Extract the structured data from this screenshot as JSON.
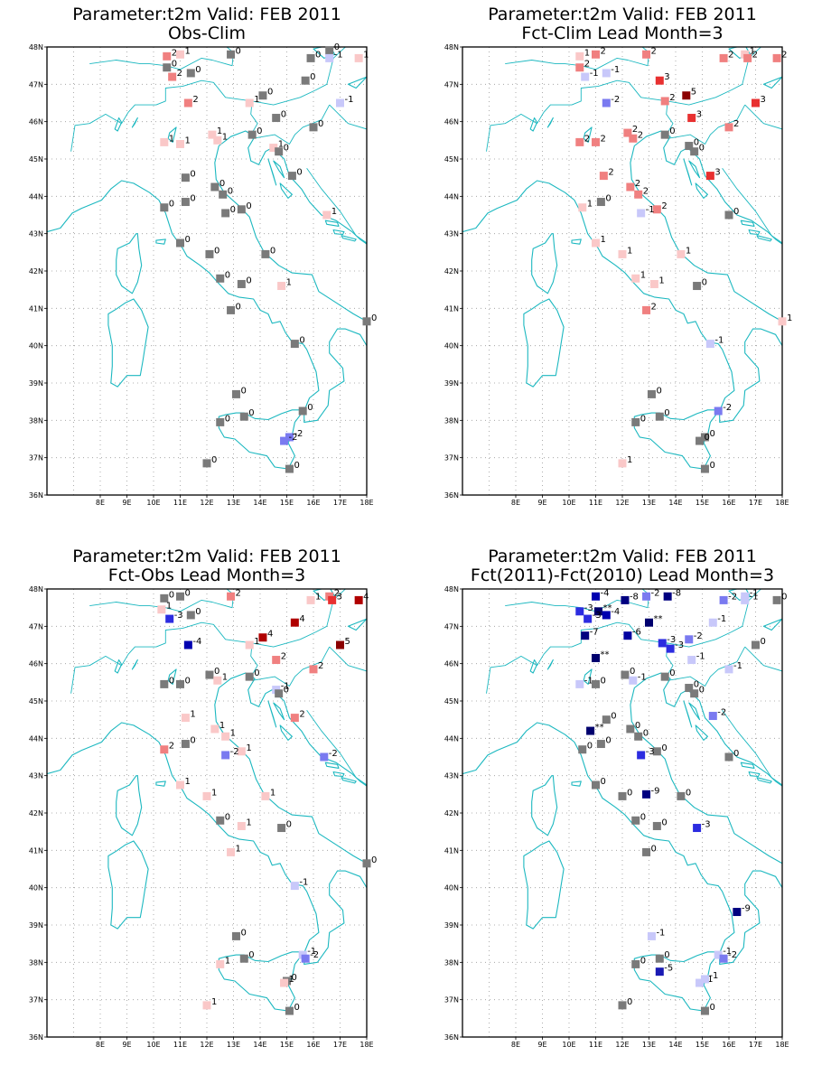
{
  "page": {
    "background": "#ffffff"
  },
  "style": {
    "frame_color": "#000000",
    "coast_color": "#1cb8c0",
    "grid_color": "#999999",
    "levels": {
      "-9": "#000080",
      "-8": "#000080",
      "-7": "#000080",
      "-6": "#0000a0",
      "-5": "#1a1ab4",
      "-4": "#0000b0",
      "-3": "#2c2ce0",
      "-2": "#7a7af0",
      "-1": "#c8c8fa",
      "0": "#7a7a7a",
      "1": "#fac8c8",
      "2": "#f08080",
      "3": "#e83030",
      "4": "#b00000",
      "5": "#8b0000",
      "**": "#00006e"
    }
  },
  "axes": {
    "x_ticks": [
      "8E",
      "9E",
      "10E",
      "11E",
      "12E",
      "13E",
      "14E",
      "15E",
      "16E",
      "17E",
      "18E"
    ],
    "y_ticks": [
      "36N",
      "37N",
      "38N",
      "39N",
      "40N",
      "41N",
      "42N",
      "43N",
      "44N",
      "45N",
      "46N",
      "47N",
      "48N"
    ]
  },
  "panels": [
    {
      "title1": "Parameter:t2m Valid: FEB 2011",
      "title2": "Obs-Clim",
      "stations": [
        {
          "lon": 10.5,
          "lat": 47.75,
          "v": "2"
        },
        {
          "lon": 11.0,
          "lat": 47.8,
          "v": "1"
        },
        {
          "lon": 12.9,
          "lat": 47.8,
          "v": "0"
        },
        {
          "lon": 16.6,
          "lat": 47.9,
          "v": "0"
        },
        {
          "lon": 16.6,
          "lat": 47.7,
          "v": "-1"
        },
        {
          "lon": 17.7,
          "lat": 47.7,
          "v": "1"
        },
        {
          "lon": 10.5,
          "lat": 47.45,
          "v": "0"
        },
        {
          "lon": 11.4,
          "lat": 47.3,
          "v": "0"
        },
        {
          "lon": 10.7,
          "lat": 47.2,
          "v": "2"
        },
        {
          "lon": 15.9,
          "lat": 47.7,
          "v": "0"
        },
        {
          "lon": 15.7,
          "lat": 47.1,
          "v": "0"
        },
        {
          "lon": 14.1,
          "lat": 46.7,
          "v": "0"
        },
        {
          "lon": 13.6,
          "lat": 46.5,
          "v": "1"
        },
        {
          "lon": 11.3,
          "lat": 46.5,
          "v": "2"
        },
        {
          "lon": 17.0,
          "lat": 46.5,
          "v": "-1"
        },
        {
          "lon": 14.6,
          "lat": 46.1,
          "v": "0"
        },
        {
          "lon": 16.0,
          "lat": 45.85,
          "v": "0"
        },
        {
          "lon": 12.2,
          "lat": 45.65,
          "v": "1"
        },
        {
          "lon": 12.4,
          "lat": 45.5,
          "v": "1"
        },
        {
          "lon": 13.7,
          "lat": 45.65,
          "v": "0"
        },
        {
          "lon": 10.4,
          "lat": 45.45,
          "v": "1"
        },
        {
          "lon": 11.0,
          "lat": 45.4,
          "v": "1"
        },
        {
          "lon": 14.5,
          "lat": 45.3,
          "v": "1"
        },
        {
          "lon": 14.7,
          "lat": 45.2,
          "v": "0"
        },
        {
          "lon": 11.2,
          "lat": 44.5,
          "v": "0"
        },
        {
          "lon": 15.2,
          "lat": 44.55,
          "v": "0"
        },
        {
          "lon": 12.3,
          "lat": 44.25,
          "v": "0"
        },
        {
          "lon": 12.6,
          "lat": 44.05,
          "v": "0"
        },
        {
          "lon": 11.2,
          "lat": 43.85,
          "v": "0"
        },
        {
          "lon": 10.4,
          "lat": 43.7,
          "v": "0"
        },
        {
          "lon": 13.3,
          "lat": 43.65,
          "v": "0"
        },
        {
          "lon": 12.7,
          "lat": 43.55,
          "v": "0"
        },
        {
          "lon": 16.5,
          "lat": 43.5,
          "v": "1"
        },
        {
          "lon": 11.0,
          "lat": 42.75,
          "v": "0"
        },
        {
          "lon": 12.1,
          "lat": 42.45,
          "v": "0"
        },
        {
          "lon": 14.2,
          "lat": 42.45,
          "v": "0"
        },
        {
          "lon": 12.5,
          "lat": 41.8,
          "v": "0"
        },
        {
          "lon": 13.3,
          "lat": 41.65,
          "v": "0"
        },
        {
          "lon": 14.8,
          "lat": 41.6,
          "v": "1"
        },
        {
          "lon": 12.9,
          "lat": 40.95,
          "v": "0"
        },
        {
          "lon": 18.0,
          "lat": 40.65,
          "v": "0"
        },
        {
          "lon": 15.3,
          "lat": 40.05,
          "v": "0"
        },
        {
          "lon": 13.1,
          "lat": 38.7,
          "v": "0"
        },
        {
          "lon": 15.6,
          "lat": 38.25,
          "v": "0"
        },
        {
          "lon": 13.4,
          "lat": 38.1,
          "v": "0"
        },
        {
          "lon": 12.5,
          "lat": 37.95,
          "v": "0"
        },
        {
          "lon": 15.1,
          "lat": 37.55,
          "v": "-2"
        },
        {
          "lon": 14.9,
          "lat": 37.45,
          "v": "-2"
        },
        {
          "lon": 12.0,
          "lat": 36.85,
          "v": "0"
        },
        {
          "lon": 15.1,
          "lat": 36.7,
          "v": "0"
        }
      ]
    },
    {
      "title1": "Parameter:t2m Valid: FEB 2011",
      "title2": "Fct-Clim Lead Month=3",
      "stations": [
        {
          "lon": 10.4,
          "lat": 47.75,
          "v": "1"
        },
        {
          "lon": 11.0,
          "lat": 47.8,
          "v": "2"
        },
        {
          "lon": 12.9,
          "lat": 47.8,
          "v": "2"
        },
        {
          "lon": 15.8,
          "lat": 47.7,
          "v": "2"
        },
        {
          "lon": 16.6,
          "lat": 47.8,
          "v": "1"
        },
        {
          "lon": 16.7,
          "lat": 47.7,
          "v": "2"
        },
        {
          "lon": 17.8,
          "lat": 47.7,
          "v": "2"
        },
        {
          "lon": 10.4,
          "lat": 47.45,
          "v": "2"
        },
        {
          "lon": 11.4,
          "lat": 47.3,
          "v": "-1"
        },
        {
          "lon": 10.6,
          "lat": 47.2,
          "v": "-1"
        },
        {
          "lon": 13.4,
          "lat": 47.1,
          "v": "3"
        },
        {
          "lon": 14.4,
          "lat": 46.7,
          "v": "5"
        },
        {
          "lon": 13.6,
          "lat": 46.55,
          "v": "2"
        },
        {
          "lon": 11.4,
          "lat": 46.5,
          "v": "-2"
        },
        {
          "lon": 17.0,
          "lat": 46.5,
          "v": "3"
        },
        {
          "lon": 14.6,
          "lat": 46.1,
          "v": "3"
        },
        {
          "lon": 16.0,
          "lat": 45.85,
          "v": "2"
        },
        {
          "lon": 12.2,
          "lat": 45.7,
          "v": "2"
        },
        {
          "lon": 12.4,
          "lat": 45.55,
          "v": "2"
        },
        {
          "lon": 13.6,
          "lat": 45.65,
          "v": "0"
        },
        {
          "lon": 10.4,
          "lat": 45.45,
          "v": "2"
        },
        {
          "lon": 11.0,
          "lat": 45.45,
          "v": "2"
        },
        {
          "lon": 14.5,
          "lat": 45.35,
          "v": "0"
        },
        {
          "lon": 14.7,
          "lat": 45.2,
          "v": "0"
        },
        {
          "lon": 11.3,
          "lat": 44.55,
          "v": "2"
        },
        {
          "lon": 15.3,
          "lat": 44.55,
          "v": "3"
        },
        {
          "lon": 12.3,
          "lat": 44.25,
          "v": "2"
        },
        {
          "lon": 12.6,
          "lat": 44.05,
          "v": "2"
        },
        {
          "lon": 11.2,
          "lat": 43.85,
          "v": "0"
        },
        {
          "lon": 10.5,
          "lat": 43.7,
          "v": "1"
        },
        {
          "lon": 13.3,
          "lat": 43.65,
          "v": "2"
        },
        {
          "lon": 12.7,
          "lat": 43.55,
          "v": "-1"
        },
        {
          "lon": 16.0,
          "lat": 43.5,
          "v": "0"
        },
        {
          "lon": 11.0,
          "lat": 42.75,
          "v": "1"
        },
        {
          "lon": 12.0,
          "lat": 42.45,
          "v": "1"
        },
        {
          "lon": 14.2,
          "lat": 42.45,
          "v": "1"
        },
        {
          "lon": 12.5,
          "lat": 41.8,
          "v": "1"
        },
        {
          "lon": 13.2,
          "lat": 41.65,
          "v": "1"
        },
        {
          "lon": 14.8,
          "lat": 41.6,
          "v": "0"
        },
        {
          "lon": 12.9,
          "lat": 40.95,
          "v": "2"
        },
        {
          "lon": 18.0,
          "lat": 40.65,
          "v": "1"
        },
        {
          "lon": 15.3,
          "lat": 40.05,
          "v": "-1"
        },
        {
          "lon": 13.1,
          "lat": 38.7,
          "v": "0"
        },
        {
          "lon": 15.6,
          "lat": 38.25,
          "v": "-2"
        },
        {
          "lon": 13.4,
          "lat": 38.1,
          "v": "0"
        },
        {
          "lon": 12.5,
          "lat": 37.95,
          "v": "0"
        },
        {
          "lon": 15.1,
          "lat": 37.55,
          "v": "0"
        },
        {
          "lon": 14.9,
          "lat": 37.45,
          "v": "0"
        },
        {
          "lon": 12.0,
          "lat": 36.85,
          "v": "1"
        },
        {
          "lon": 15.1,
          "lat": 36.7,
          "v": "0"
        }
      ]
    },
    {
      "title1": "Parameter:t2m Valid: FEB 2011",
      "title2": "Fct-Obs Lead Month=3",
      "stations": [
        {
          "lon": 10.4,
          "lat": 47.75,
          "v": "0"
        },
        {
          "lon": 11.0,
          "lat": 47.8,
          "v": "0"
        },
        {
          "lon": 12.9,
          "lat": 47.8,
          "v": "2"
        },
        {
          "lon": 15.9,
          "lat": 47.7,
          "v": "1"
        },
        {
          "lon": 16.6,
          "lat": 47.8,
          "v": "2"
        },
        {
          "lon": 16.7,
          "lat": 47.7,
          "v": "3"
        },
        {
          "lon": 17.7,
          "lat": 47.7,
          "v": "4"
        },
        {
          "lon": 10.3,
          "lat": 47.45,
          "v": "1"
        },
        {
          "lon": 11.4,
          "lat": 47.3,
          "v": "0"
        },
        {
          "lon": 10.6,
          "lat": 47.2,
          "v": "-3"
        },
        {
          "lon": 15.3,
          "lat": 47.1,
          "v": "4"
        },
        {
          "lon": 14.1,
          "lat": 46.7,
          "v": "4"
        },
        {
          "lon": 13.6,
          "lat": 46.5,
          "v": "1"
        },
        {
          "lon": 11.3,
          "lat": 46.5,
          "v": "-4"
        },
        {
          "lon": 17.0,
          "lat": 46.5,
          "v": "5"
        },
        {
          "lon": 14.6,
          "lat": 46.1,
          "v": "2"
        },
        {
          "lon": 16.0,
          "lat": 45.85,
          "v": "2"
        },
        {
          "lon": 12.1,
          "lat": 45.7,
          "v": "0"
        },
        {
          "lon": 12.4,
          "lat": 45.55,
          "v": "1"
        },
        {
          "lon": 13.6,
          "lat": 45.65,
          "v": "0"
        },
        {
          "lon": 10.4,
          "lat": 45.45,
          "v": "0"
        },
        {
          "lon": 11.0,
          "lat": 45.45,
          "v": "0"
        },
        {
          "lon": 14.6,
          "lat": 45.3,
          "v": "-1"
        },
        {
          "lon": 14.7,
          "lat": 45.2,
          "v": "0"
        },
        {
          "lon": 11.2,
          "lat": 44.55,
          "v": "1"
        },
        {
          "lon": 15.3,
          "lat": 44.55,
          "v": "2"
        },
        {
          "lon": 12.3,
          "lat": 44.25,
          "v": "1"
        },
        {
          "lon": 12.7,
          "lat": 44.05,
          "v": "1"
        },
        {
          "lon": 11.2,
          "lat": 43.85,
          "v": "0"
        },
        {
          "lon": 10.4,
          "lat": 43.7,
          "v": "2"
        },
        {
          "lon": 13.3,
          "lat": 43.65,
          "v": "1"
        },
        {
          "lon": 12.7,
          "lat": 43.55,
          "v": "-2"
        },
        {
          "lon": 16.4,
          "lat": 43.5,
          "v": "-2"
        },
        {
          "lon": 11.0,
          "lat": 42.75,
          "v": "1"
        },
        {
          "lon": 12.0,
          "lat": 42.45,
          "v": "1"
        },
        {
          "lon": 14.2,
          "lat": 42.45,
          "v": "1"
        },
        {
          "lon": 12.5,
          "lat": 41.8,
          "v": "0"
        },
        {
          "lon": 13.3,
          "lat": 41.65,
          "v": "1"
        },
        {
          "lon": 14.8,
          "lat": 41.6,
          "v": "0"
        },
        {
          "lon": 12.9,
          "lat": 40.95,
          "v": "1"
        },
        {
          "lon": 18.0,
          "lat": 40.65,
          "v": "0"
        },
        {
          "lon": 15.3,
          "lat": 40.05,
          "v": "-1"
        },
        {
          "lon": 13.1,
          "lat": 38.7,
          "v": "0"
        },
        {
          "lon": 15.6,
          "lat": 38.2,
          "v": "-1"
        },
        {
          "lon": 15.7,
          "lat": 38.1,
          "v": "-2"
        },
        {
          "lon": 13.4,
          "lat": 38.1,
          "v": "0"
        },
        {
          "lon": 12.5,
          "lat": 37.95,
          "v": "1"
        },
        {
          "lon": 15.0,
          "lat": 37.5,
          "v": "0"
        },
        {
          "lon": 14.9,
          "lat": 37.45,
          "v": "1"
        },
        {
          "lon": 12.0,
          "lat": 36.85,
          "v": "1"
        },
        {
          "lon": 15.1,
          "lat": 36.7,
          "v": "0"
        }
      ]
    },
    {
      "title1": "Parameter:t2m Valid: FEB 2011",
      "title2": "Fct(2011)-Fct(2010) Lead Month=3",
      "stations": [
        {
          "lon": 11.0,
          "lat": 47.8,
          "v": "-4"
        },
        {
          "lon": 12.1,
          "lat": 47.7,
          "v": "-8"
        },
        {
          "lon": 12.9,
          "lat": 47.8,
          "v": "-2"
        },
        {
          "lon": 13.7,
          "lat": 47.8,
          "v": "-8"
        },
        {
          "lon": 15.8,
          "lat": 47.7,
          "v": "-2"
        },
        {
          "lon": 16.6,
          "lat": 47.8,
          "v": "-1"
        },
        {
          "lon": 16.6,
          "lat": 47.7,
          "v": "-1"
        },
        {
          "lon": 17.8,
          "lat": 47.7,
          "v": "0"
        },
        {
          "lon": 10.4,
          "lat": 47.4,
          "v": "-3"
        },
        {
          "lon": 11.1,
          "lat": 47.4,
          "v": "**"
        },
        {
          "lon": 11.4,
          "lat": 47.3,
          "v": "-4"
        },
        {
          "lon": 10.7,
          "lat": 47.2,
          "v": "-3"
        },
        {
          "lon": 13.0,
          "lat": 47.1,
          "v": "**"
        },
        {
          "lon": 15.4,
          "lat": 47.1,
          "v": "-1"
        },
        {
          "lon": 10.6,
          "lat": 46.75,
          "v": "-7"
        },
        {
          "lon": 12.2,
          "lat": 46.75,
          "v": "-6"
        },
        {
          "lon": 13.5,
          "lat": 46.55,
          "v": "-3"
        },
        {
          "lon": 14.5,
          "lat": 46.65,
          "v": "-2"
        },
        {
          "lon": 13.8,
          "lat": 46.4,
          "v": "-3"
        },
        {
          "lon": 17.0,
          "lat": 46.5,
          "v": "0"
        },
        {
          "lon": 11.0,
          "lat": 46.15,
          "v": "**"
        },
        {
          "lon": 14.6,
          "lat": 46.1,
          "v": "-1"
        },
        {
          "lon": 16.0,
          "lat": 45.85,
          "v": "-1"
        },
        {
          "lon": 12.1,
          "lat": 45.7,
          "v": "0"
        },
        {
          "lon": 12.4,
          "lat": 45.55,
          "v": "-1"
        },
        {
          "lon": 13.6,
          "lat": 45.65,
          "v": "0"
        },
        {
          "lon": 10.4,
          "lat": 45.45,
          "v": "-1"
        },
        {
          "lon": 11.0,
          "lat": 45.45,
          "v": "0"
        },
        {
          "lon": 14.5,
          "lat": 45.35,
          "v": "0"
        },
        {
          "lon": 14.7,
          "lat": 45.2,
          "v": "0"
        },
        {
          "lon": 11.4,
          "lat": 44.5,
          "v": "0"
        },
        {
          "lon": 15.4,
          "lat": 44.6,
          "v": "-2"
        },
        {
          "lon": 10.8,
          "lat": 44.2,
          "v": "**"
        },
        {
          "lon": 12.3,
          "lat": 44.25,
          "v": "0"
        },
        {
          "lon": 12.6,
          "lat": 44.05,
          "v": "0"
        },
        {
          "lon": 11.2,
          "lat": 43.85,
          "v": "0"
        },
        {
          "lon": 10.5,
          "lat": 43.7,
          "v": "0"
        },
        {
          "lon": 13.3,
          "lat": 43.65,
          "v": "0"
        },
        {
          "lon": 12.7,
          "lat": 43.55,
          "v": "-3"
        },
        {
          "lon": 16.0,
          "lat": 43.5,
          "v": "0"
        },
        {
          "lon": 11.0,
          "lat": 42.75,
          "v": "0"
        },
        {
          "lon": 12.0,
          "lat": 42.45,
          "v": "0"
        },
        {
          "lon": 12.9,
          "lat": 42.5,
          "v": "-9"
        },
        {
          "lon": 14.2,
          "lat": 42.45,
          "v": "0"
        },
        {
          "lon": 12.5,
          "lat": 41.8,
          "v": "0"
        },
        {
          "lon": 13.3,
          "lat": 41.65,
          "v": "0"
        },
        {
          "lon": 14.8,
          "lat": 41.6,
          "v": "-3"
        },
        {
          "lon": 12.9,
          "lat": 40.95,
          "v": "0"
        },
        {
          "lon": 16.3,
          "lat": 39.35,
          "v": "-9"
        },
        {
          "lon": 13.1,
          "lat": 38.7,
          "v": "-1"
        },
        {
          "lon": 15.6,
          "lat": 38.2,
          "v": "-1"
        },
        {
          "lon": 15.8,
          "lat": 38.1,
          "v": "-2"
        },
        {
          "lon": 13.4,
          "lat": 38.1,
          "v": "0"
        },
        {
          "lon": 12.5,
          "lat": 37.95,
          "v": "0"
        },
        {
          "lon": 13.4,
          "lat": 37.75,
          "v": "-5"
        },
        {
          "lon": 14.9,
          "lat": 37.45,
          "v": "-1"
        },
        {
          "lon": 15.1,
          "lat": 37.55,
          "v": "-1"
        },
        {
          "lon": 12.0,
          "lat": 36.85,
          "v": "0"
        },
        {
          "lon": 15.1,
          "lat": 36.7,
          "v": "0"
        }
      ]
    }
  ]
}
